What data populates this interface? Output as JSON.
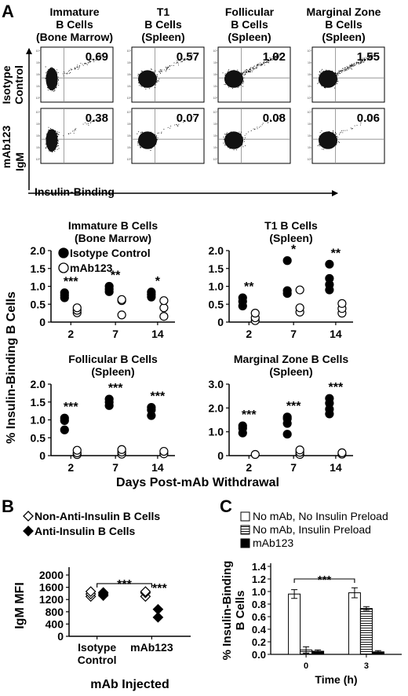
{
  "panels": {
    "A": "A",
    "B": "B",
    "C": "C"
  },
  "flow": {
    "columns": [
      [
        "Immature",
        "B Cells",
        "(Bone Marrow)"
      ],
      [
        "T1",
        "B Cells",
        "(Spleen)"
      ],
      [
        "Follicular",
        "B Cells",
        "(Spleen)"
      ],
      [
        "Marginal Zone",
        "B Cells",
        "(Spleen)"
      ]
    ],
    "rows": [
      [
        "Isotype",
        "Control"
      ],
      [
        "mAb123"
      ]
    ],
    "values": [
      [
        "0.69",
        "0.57",
        "1.02",
        "1.55"
      ],
      [
        "0.38",
        "0.07",
        "0.08",
        "0.06"
      ]
    ],
    "y_axis": "IgM",
    "x_axis": "Insulin-Binding"
  },
  "chart_data": [
    {
      "id": "A-immature",
      "type": "scatter",
      "title": [
        "Immature B Cells",
        "(Bone Marrow)"
      ],
      "x": [
        "2",
        "7",
        "14"
      ],
      "ylim": [
        0,
        2.0
      ],
      "yticks": [
        "0",
        "0.5",
        "1.0",
        "1.5",
        "2.0"
      ],
      "legend": [
        "Isotype Control",
        "mAb123"
      ],
      "series": [
        {
          "name": "Isotype Control",
          "marker": "filled-circle",
          "points": [
            [
              2,
              0.68
            ],
            [
              2,
              0.75
            ],
            [
              2,
              0.82
            ],
            [
              7,
              0.85
            ],
            [
              7,
              0.92
            ],
            [
              7,
              1.0
            ],
            [
              14,
              0.7
            ],
            [
              14,
              0.77
            ],
            [
              14,
              0.84
            ]
          ]
        },
        {
          "name": "mAb123",
          "marker": "open-circle",
          "points": [
            [
              2,
              0.26
            ],
            [
              2,
              0.33
            ],
            [
              2,
              0.4
            ],
            [
              7,
              0.2
            ],
            [
              7,
              0.6
            ],
            [
              7,
              0.63
            ],
            [
              14,
              0.16
            ],
            [
              14,
              0.4
            ],
            [
              14,
              0.6
            ]
          ]
        }
      ],
      "significance": [
        "***",
        "**",
        "*"
      ]
    },
    {
      "id": "A-t1",
      "type": "scatter",
      "title": [
        "T1 B Cells",
        "(Spleen)"
      ],
      "x": [
        "2",
        "7",
        "14"
      ],
      "ylim": [
        0,
        2.0
      ],
      "yticks": [
        "0",
        "0.5",
        "1.0",
        "1.5",
        "2.0"
      ],
      "series": [
        {
          "name": "Isotype Control",
          "marker": "filled-circle",
          "points": [
            [
              2,
              0.45
            ],
            [
              2,
              0.58
            ],
            [
              2,
              0.68
            ],
            [
              7,
              0.8
            ],
            [
              7,
              0.88
            ],
            [
              7,
              1.72
            ],
            [
              14,
              0.9
            ],
            [
              14,
              1.05
            ],
            [
              14,
              1.22
            ],
            [
              14,
              1.62
            ]
          ]
        },
        {
          "name": "mAb123",
          "marker": "open-circle",
          "points": [
            [
              2,
              0.04
            ],
            [
              2,
              0.12
            ],
            [
              2,
              0.25
            ],
            [
              7,
              0.28
            ],
            [
              7,
              0.4
            ],
            [
              7,
              0.9
            ],
            [
              14,
              0.25
            ],
            [
              14,
              0.38
            ],
            [
              14,
              0.52
            ]
          ]
        }
      ],
      "significance": [
        "**",
        "*",
        "**"
      ]
    },
    {
      "id": "A-follicular",
      "type": "scatter",
      "title": [
        "Follicular B Cells",
        "(Spleen)"
      ],
      "x": [
        "2",
        "7",
        "14"
      ],
      "ylim": [
        0,
        2.0
      ],
      "yticks": [
        "0",
        "0.5",
        "1.0",
        "1.5",
        "2.0"
      ],
      "series": [
        {
          "name": "Isotype Control",
          "marker": "filled-circle",
          "points": [
            [
              2,
              0.72
            ],
            [
              2,
              0.98
            ],
            [
              2,
              1.05
            ],
            [
              7,
              1.4
            ],
            [
              7,
              1.5
            ],
            [
              7,
              1.58
            ],
            [
              14,
              1.12
            ],
            [
              14,
              1.28
            ],
            [
              14,
              1.35
            ]
          ]
        },
        {
          "name": "mAb123",
          "marker": "open-circle",
          "points": [
            [
              2,
              0.03
            ],
            [
              2,
              0.08
            ],
            [
              2,
              0.15
            ],
            [
              7,
              0.04
            ],
            [
              7,
              0.1
            ],
            [
              7,
              0.17
            ],
            [
              14,
              0.05
            ],
            [
              14,
              0.12
            ]
          ]
        }
      ],
      "significance": [
        "***",
        "***",
        "***"
      ]
    },
    {
      "id": "A-marginal",
      "type": "scatter",
      "title": [
        "Marginal Zone B Cells",
        "(Spleen)"
      ],
      "x": [
        "2",
        "7",
        "14"
      ],
      "ylim": [
        0,
        3.0
      ],
      "yticks": [
        "0",
        "1.0",
        "2.0",
        "3.0"
      ],
      "series": [
        {
          "name": "Isotype Control",
          "marker": "filled-circle",
          "points": [
            [
              2,
              0.95
            ],
            [
              2,
              1.15
            ],
            [
              2,
              1.25
            ],
            [
              7,
              0.9
            ],
            [
              7,
              1.35
            ],
            [
              7,
              1.55
            ],
            [
              7,
              1.62
            ],
            [
              14,
              1.75
            ],
            [
              14,
              1.95
            ],
            [
              14,
              2.2
            ],
            [
              14,
              2.4
            ]
          ]
        },
        {
          "name": "mAb123",
          "marker": "open-circle",
          "points": [
            [
              2,
              0.05
            ],
            [
              7,
              0.05
            ],
            [
              7,
              0.14
            ],
            [
              7,
              0.24
            ],
            [
              14,
              0.06
            ],
            [
              14,
              0.12
            ]
          ]
        }
      ],
      "significance": [
        "***",
        "***",
        "***"
      ]
    },
    {
      "id": "B",
      "type": "scatter",
      "title": "",
      "ylabel": "IgM MFI",
      "xlabel": "mAb Injected",
      "categories": [
        [
          "Isotype",
          "Control"
        ],
        [
          "mAb123"
        ]
      ],
      "ylim": [
        0,
        2000
      ],
      "yticks": [
        "0",
        "400",
        "800",
        "1200",
        "1600",
        "2000"
      ],
      "legend": [
        "Non-Anti-Insulin B Cells",
        "Anti-Insulin B Cells"
      ],
      "series": [
        {
          "name": "Non-Anti-Insulin B Cells",
          "marker": "open-diamond",
          "points": [
            [
              "Isotype Control",
              1300
            ],
            [
              "Isotype Control",
              1380
            ],
            [
              "Isotype Control",
              1460
            ],
            [
              "mAb123",
              1300
            ],
            [
              "mAb123",
              1420
            ],
            [
              "mAb123",
              1460
            ]
          ]
        },
        {
          "name": "Anti-Insulin B Cells",
          "marker": "filled-diamond",
          "points": [
            [
              "Isotype Control",
              1330
            ],
            [
              "Isotype Control",
              1380
            ],
            [
              "Isotype Control",
              1430
            ],
            [
              "mAb123",
              620
            ],
            [
              "mAb123",
              880
            ]
          ]
        }
      ],
      "significance": [
        "***",
        "***"
      ]
    },
    {
      "id": "C",
      "type": "bar",
      "title": "",
      "ylabel": [
        "% Insulin-Binding",
        "B Cells"
      ],
      "xlabel": "Time (h)",
      "categories": [
        "0",
        "3"
      ],
      "ylim": [
        0,
        1.4
      ],
      "yticks": [
        "0.0",
        "0.2",
        "0.4",
        "0.6",
        "0.8",
        "1.0",
        "1.2",
        "1.4"
      ],
      "legend": [
        "No mAb, No Insulin Preload",
        "No mAb, Insulin Preload",
        "mAb123"
      ],
      "series": [
        {
          "name": "No mAb, No Insulin Preload",
          "fill": "white",
          "values": [
            0.96,
            0.98
          ],
          "errors": [
            0.07,
            0.08
          ]
        },
        {
          "name": "No mAb, Insulin Preload",
          "fill": "hatched",
          "values": [
            0.07,
            0.73
          ],
          "errors": [
            0.05,
            0.03
          ]
        },
        {
          "name": "mAb123",
          "fill": "black",
          "values": [
            0.05,
            0.04
          ],
          "errors": [
            0.02,
            0.02
          ]
        }
      ],
      "significance": [
        "***"
      ]
    }
  ],
  "shared": {
    "a_ylabel": "% Insulin-Binding B Cells",
    "a_xlabel": "Days Post-mAb Withdrawal"
  }
}
